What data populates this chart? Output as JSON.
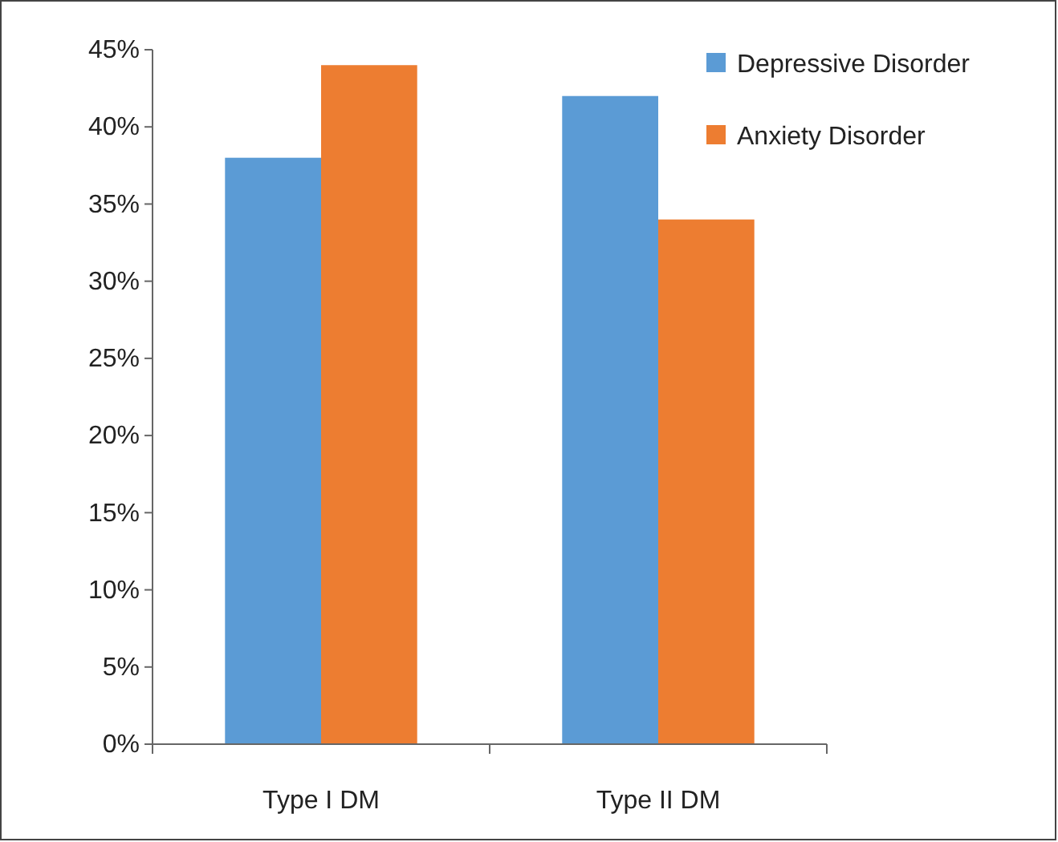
{
  "chart_data": {
    "type": "bar",
    "categories": [
      "Type I DM",
      "Type II DM"
    ],
    "series": [
      {
        "name": "Depressive Disorder",
        "color": "#5b9bd5",
        "values": [
          38,
          42
        ]
      },
      {
        "name": "Anxiety Disorder",
        "color": "#ed7d31",
        "values": [
          44,
          34
        ]
      }
    ],
    "ylim": [
      0,
      45
    ],
    "yticks": [
      {
        "value": 0,
        "label": "0%"
      },
      {
        "value": 5,
        "label": "5%"
      },
      {
        "value": 10,
        "label": "10%"
      },
      {
        "value": 15,
        "label": "15%"
      },
      {
        "value": 20,
        "label": "20%"
      },
      {
        "value": 25,
        "label": "25%"
      },
      {
        "value": 30,
        "label": "30%"
      },
      {
        "value": 35,
        "label": "35%"
      },
      {
        "value": 40,
        "label": "40%"
      },
      {
        "value": 45,
        "label": "45%"
      }
    ],
    "grid": false,
    "legend": "top right"
  }
}
